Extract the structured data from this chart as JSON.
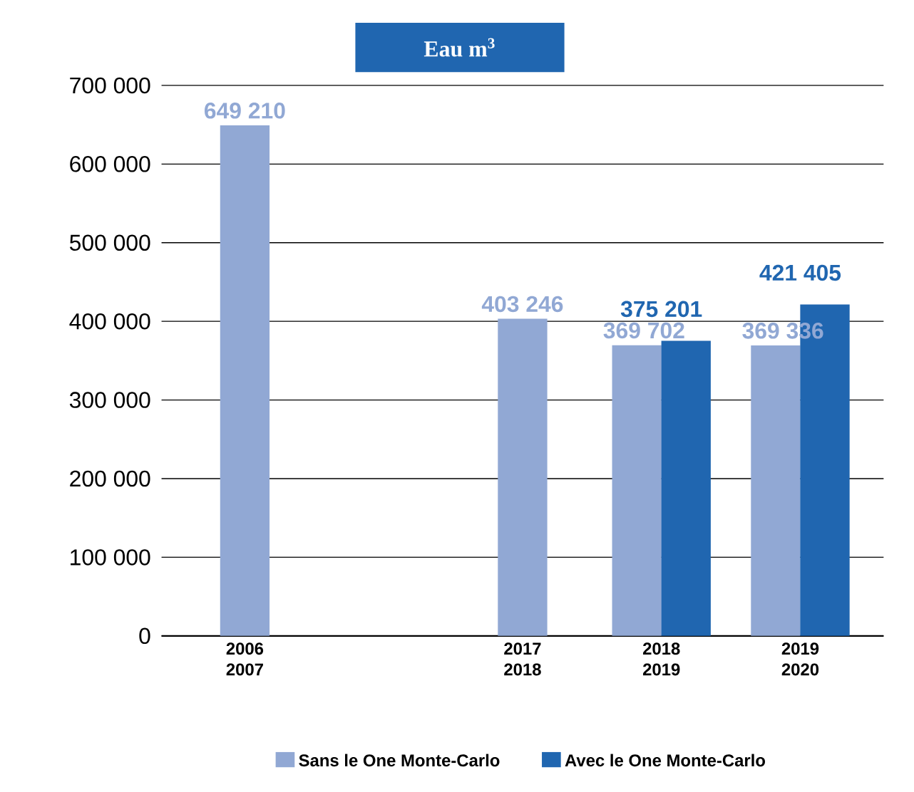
{
  "chart_data": {
    "type": "bar",
    "title": "Eau m$^{3}$",
    "categories": [
      "2006 2007",
      null,
      "2017 2018",
      "2018 2019",
      "2019 2020"
    ],
    "series": [
      {
        "name": "Sans le One Monte-Carlo",
        "color": "#91a8d4",
        "values": [
          649210,
          null,
          403246,
          369702,
          369336
        ]
      },
      {
        "name": "Avec le One Monte-Carlo",
        "color": "#2066b0",
        "values": [
          null,
          null,
          null,
          375201,
          421405
        ]
      }
    ],
    "ylim": [
      0,
      700000
    ],
    "yticks": [
      {
        "value": 0,
        "label": "0"
      },
      {
        "value": 100000,
        "label": "100 000"
      },
      {
        "value": 200000,
        "label": "200 000"
      },
      {
        "value": 300000,
        "label": "300 000"
      },
      {
        "value": 400000,
        "label": "400 000"
      },
      {
        "value": 500000,
        "label": "500 000"
      },
      {
        "value": 600000,
        "label": "600 000"
      },
      {
        "value": 700000,
        "label": "700 000"
      }
    ],
    "grid": "y",
    "legend": "bottom",
    "data_labels": true
  }
}
